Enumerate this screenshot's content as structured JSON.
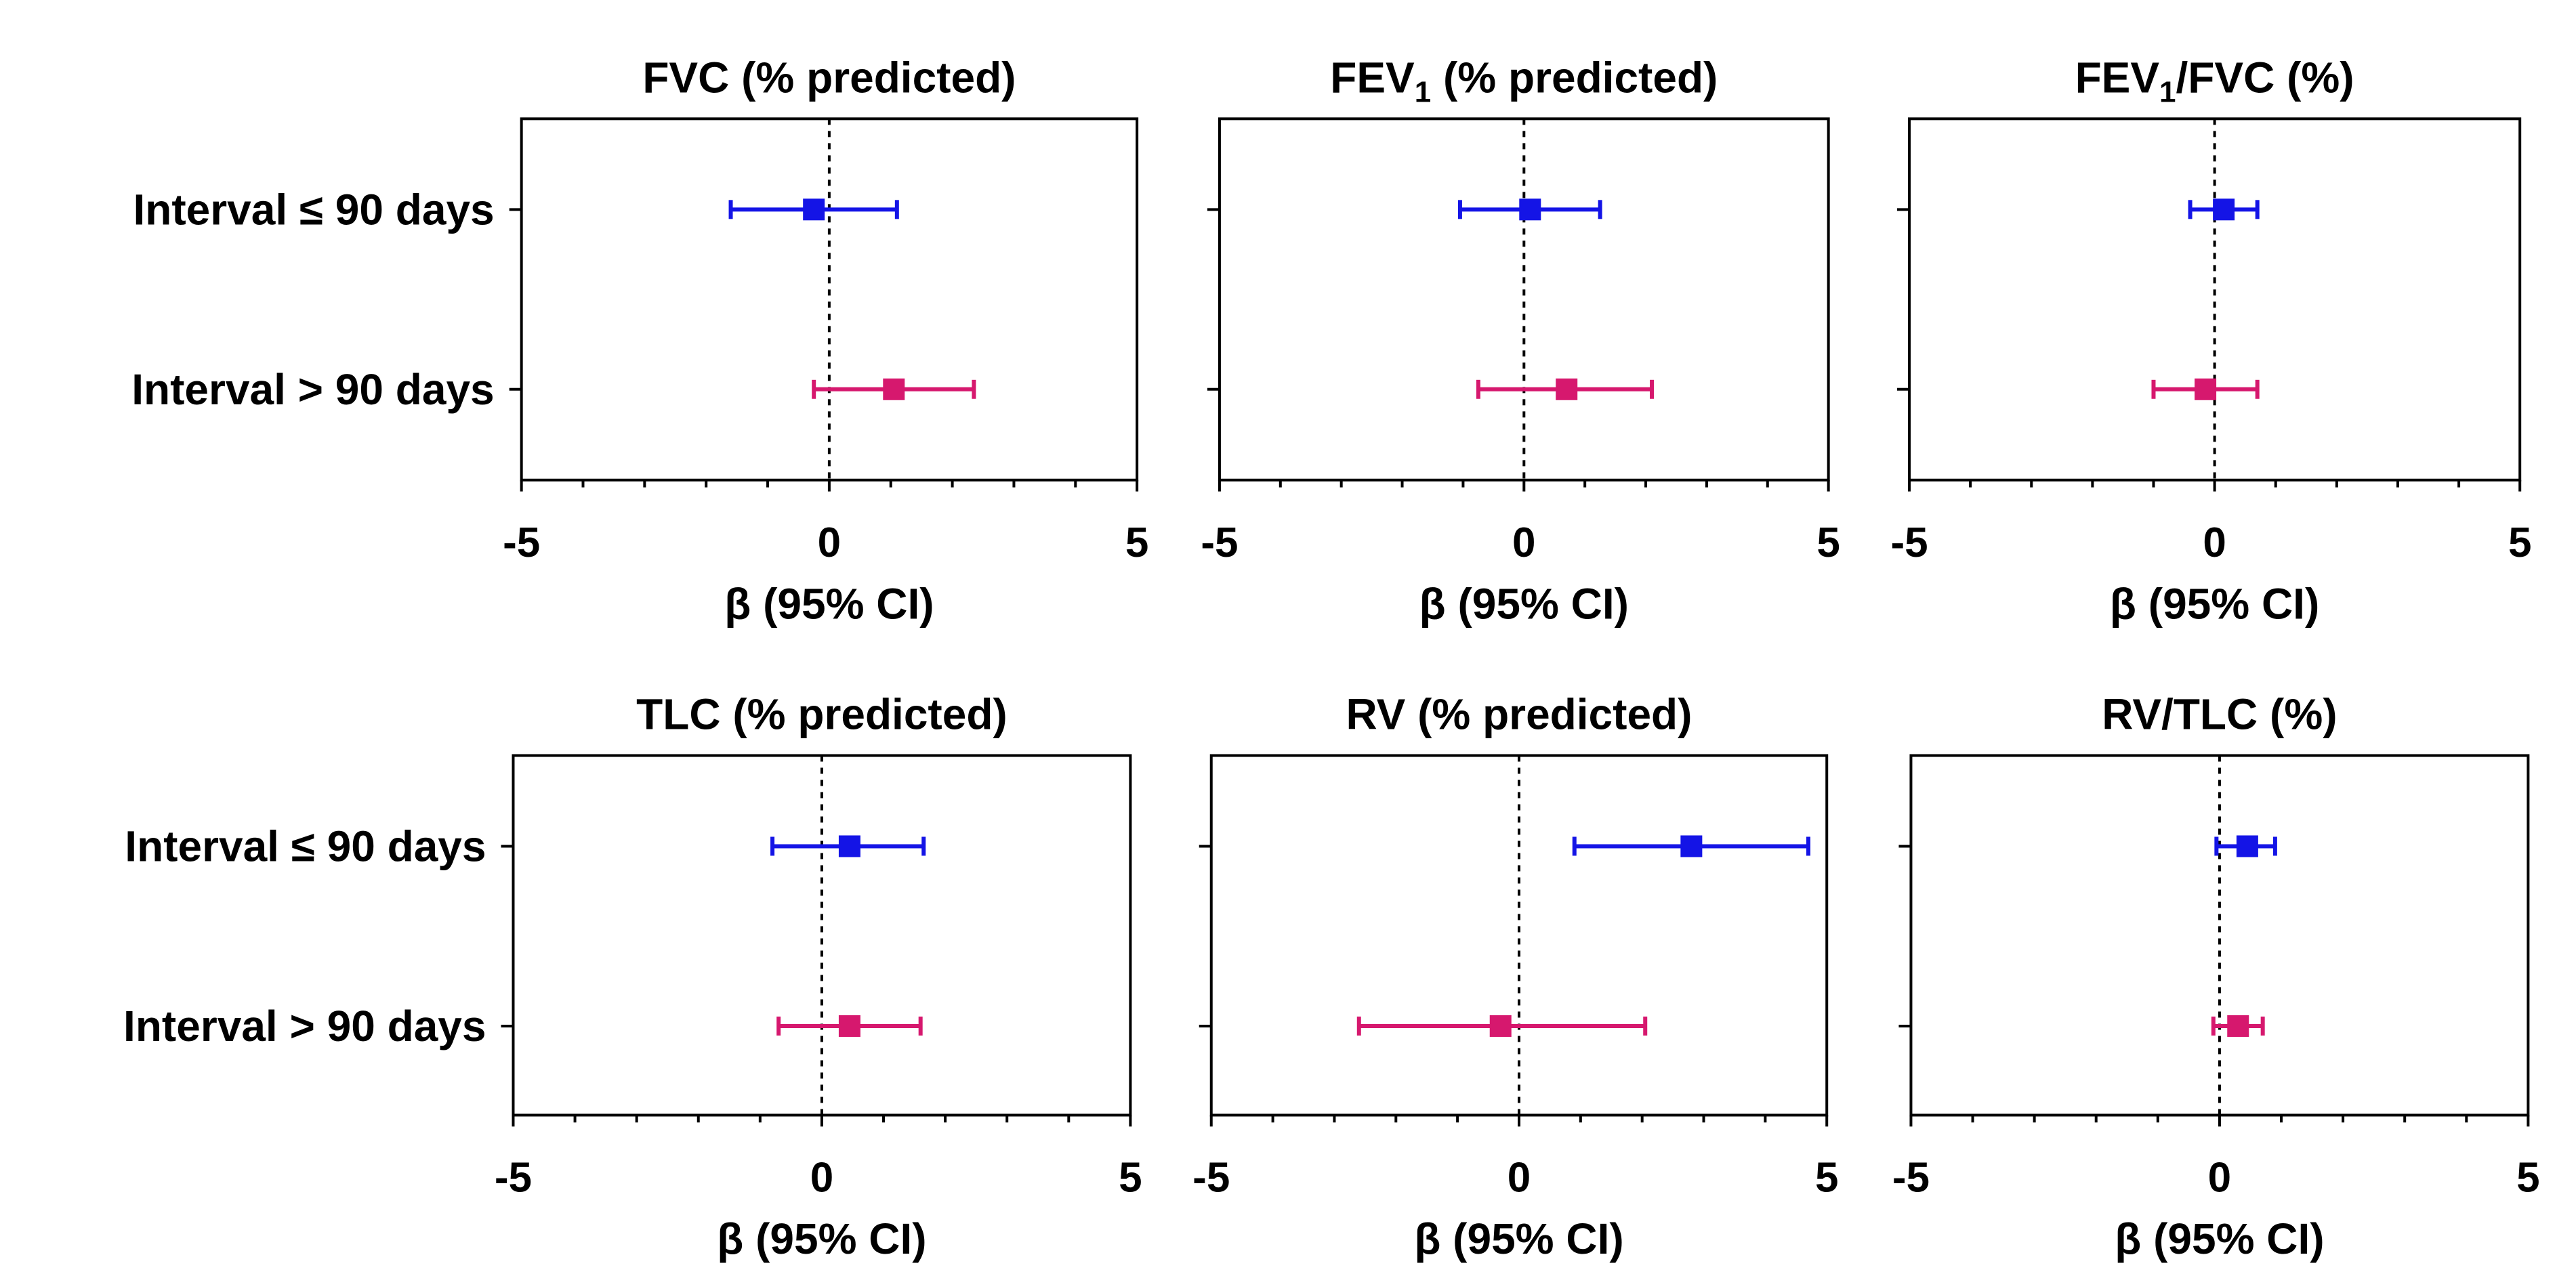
{
  "colors": {
    "short_interval": "#1414e6",
    "long_interval": "#d6186e"
  },
  "chart_data": [
    {
      "type": "scatter",
      "title": "FVC (% predicted)",
      "xlabel": "β (95% CI)",
      "xlim": [
        -5,
        5
      ],
      "xticks": [
        "-5",
        "0",
        "5"
      ],
      "categories": [
        "Interval ≤ 90 days",
        "Interval > 90 days"
      ],
      "series": [
        {
          "estimate": -0.25,
          "lower": -1.6,
          "upper": 1.1
        },
        {
          "estimate": 1.05,
          "lower": -0.25,
          "upper": 2.35
        }
      ]
    },
    {
      "type": "scatter",
      "title": "FEV",
      "title_sub": "1",
      "title_suffix": " (% predicted)",
      "xlabel": "β (95% CI)",
      "xlim": [
        -5,
        5
      ],
      "xticks": [
        "-5",
        "0",
        "5"
      ],
      "categories": [
        "",
        ""
      ],
      "series": [
        {
          "estimate": 0.1,
          "lower": -1.05,
          "upper": 1.25
        },
        {
          "estimate": 0.7,
          "lower": -0.75,
          "upper": 2.1
        }
      ]
    },
    {
      "type": "scatter",
      "title": "FEV",
      "title_sub": "1",
      "title_suffix": "/FVC (%)",
      "xlabel": "β (95% CI)",
      "xlim": [
        -5,
        5
      ],
      "xticks": [
        "-5",
        "0",
        "5"
      ],
      "categories": [
        "",
        ""
      ],
      "series": [
        {
          "estimate": 0.15,
          "lower": -0.4,
          "upper": 0.7
        },
        {
          "estimate": -0.15,
          "lower": -1.0,
          "upper": 0.7
        }
      ]
    },
    {
      "type": "scatter",
      "title": "TLC (% predicted)",
      "xlabel": "β (95% CI)",
      "xlim": [
        -5,
        5
      ],
      "xticks": [
        "-5",
        "0",
        "5"
      ],
      "categories": [
        "Interval ≤ 90 days",
        "Interval > 90 days"
      ],
      "series": [
        {
          "estimate": 0.45,
          "lower": -0.8,
          "upper": 1.65
        },
        {
          "estimate": 0.45,
          "lower": -0.7,
          "upper": 1.6
        }
      ]
    },
    {
      "type": "scatter",
      "title": "RV (% predicted)",
      "xlabel": "β (95% CI)",
      "xlim": [
        -5,
        5
      ],
      "xticks": [
        "-5",
        "0",
        "5"
      ],
      "categories": [
        "",
        ""
      ],
      "series": [
        {
          "estimate": 2.8,
          "lower": 0.9,
          "upper": 4.7
        },
        {
          "estimate": -0.3,
          "lower": -2.6,
          "upper": 2.05
        }
      ]
    },
    {
      "type": "scatter",
      "title": "RV/TLC (%)",
      "xlabel": "β (95% CI)",
      "xlim": [
        -5,
        5
      ],
      "xticks": [
        "-5",
        "0",
        "5"
      ],
      "categories": [
        "",
        ""
      ],
      "series": [
        {
          "estimate": 0.45,
          "lower": -0.05,
          "upper": 0.9
        },
        {
          "estimate": 0.3,
          "lower": -0.1,
          "upper": 0.7
        }
      ]
    }
  ]
}
